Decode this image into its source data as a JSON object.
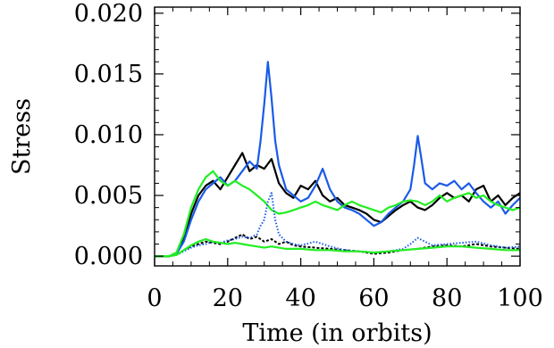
{
  "chart_data": {
    "type": "line",
    "title": "",
    "xlabel": "Time (in orbits)",
    "ylabel": "Stress",
    "xlim": [
      0,
      100
    ],
    "ylim": [
      -0.0008,
      0.0205
    ],
    "x_ticks": [
      0,
      20,
      40,
      60,
      80,
      100
    ],
    "x_tick_labels": [
      "0",
      "20",
      "40",
      "60",
      "80",
      "100"
    ],
    "y_ticks": [
      0.0,
      0.005,
      0.01,
      0.015,
      0.02
    ],
    "y_tick_labels": [
      "0.000",
      "0.005",
      "0.010",
      "0.015",
      "0.020"
    ],
    "grid": false,
    "legend": "none",
    "series": [
      {
        "color": "#000000",
        "style": "solid",
        "x": [
          0,
          4,
          6,
          8,
          10,
          12,
          14,
          16,
          18,
          20,
          22,
          24,
          26,
          28,
          30,
          32,
          34,
          36,
          38,
          40,
          42,
          44,
          46,
          48,
          50,
          52,
          54,
          56,
          58,
          60,
          62,
          64,
          66,
          68,
          70,
          72,
          74,
          76,
          78,
          80,
          82,
          84,
          86,
          88,
          90,
          92,
          94,
          96,
          98,
          100
        ],
        "y": [
          0.0,
          0.0,
          0.0002,
          0.0015,
          0.0035,
          0.005,
          0.0058,
          0.0062,
          0.0055,
          0.0065,
          0.0075,
          0.0085,
          0.007,
          0.0075,
          0.0072,
          0.008,
          0.006,
          0.0052,
          0.0048,
          0.0058,
          0.0055,
          0.0062,
          0.005,
          0.0045,
          0.0048,
          0.0042,
          0.004,
          0.0038,
          0.0035,
          0.003,
          0.0028,
          0.0033,
          0.0038,
          0.0042,
          0.0045,
          0.004,
          0.0038,
          0.0042,
          0.0048,
          0.0052,
          0.0048,
          0.005,
          0.0045,
          0.0055,
          0.0058,
          0.0045,
          0.005,
          0.0042,
          0.0048,
          0.0052
        ]
      },
      {
        "color": "#1a5be8",
        "style": "solid",
        "x": [
          0,
          4,
          6,
          8,
          10,
          12,
          14,
          16,
          18,
          20,
          22,
          24,
          26,
          28,
          29,
          30,
          31,
          32,
          33,
          34,
          36,
          38,
          40,
          42,
          44,
          46,
          48,
          50,
          52,
          54,
          56,
          58,
          60,
          62,
          64,
          66,
          68,
          70,
          71,
          72,
          73,
          74,
          76,
          78,
          80,
          82,
          84,
          86,
          88,
          90,
          92,
          94,
          96,
          98,
          100
        ],
        "y": [
          0.0,
          0.0,
          0.0002,
          0.0012,
          0.003,
          0.0045,
          0.0055,
          0.006,
          0.0065,
          0.0058,
          0.0062,
          0.007,
          0.0078,
          0.0072,
          0.0095,
          0.0125,
          0.016,
          0.013,
          0.0095,
          0.0075,
          0.0055,
          0.005,
          0.0045,
          0.0048,
          0.0058,
          0.0072,
          0.0055,
          0.0045,
          0.004,
          0.0038,
          0.0035,
          0.003,
          0.0025,
          0.0028,
          0.0035,
          0.004,
          0.0045,
          0.0055,
          0.0075,
          0.0099,
          0.008,
          0.006,
          0.0055,
          0.006,
          0.0058,
          0.0062,
          0.0055,
          0.006,
          0.0052,
          0.0045,
          0.004,
          0.0045,
          0.0035,
          0.0042,
          0.0048
        ]
      },
      {
        "color": "#22ee22",
        "style": "solid",
        "x": [
          0,
          4,
          6,
          8,
          10,
          12,
          14,
          16,
          18,
          20,
          22,
          24,
          26,
          28,
          30,
          32,
          34,
          36,
          38,
          40,
          42,
          44,
          46,
          48,
          50,
          52,
          54,
          56,
          58,
          60,
          62,
          64,
          66,
          68,
          70,
          72,
          74,
          76,
          78,
          80,
          82,
          84,
          86,
          88,
          90,
          92,
          94,
          96,
          98,
          100
        ],
        "y": [
          0.0,
          0.0,
          0.0003,
          0.0018,
          0.004,
          0.0055,
          0.0065,
          0.007,
          0.0062,
          0.0058,
          0.0062,
          0.0058,
          0.0055,
          0.005,
          0.0045,
          0.0038,
          0.0035,
          0.0036,
          0.0038,
          0.004,
          0.0042,
          0.0045,
          0.0042,
          0.004,
          0.0038,
          0.0042,
          0.0045,
          0.0042,
          0.004,
          0.0038,
          0.0036,
          0.004,
          0.0042,
          0.0045,
          0.0046,
          0.0045,
          0.0042,
          0.0045,
          0.005,
          0.0045,
          0.0048,
          0.005,
          0.0052,
          0.0048,
          0.005,
          0.0045,
          0.0042,
          0.004,
          0.0038,
          0.004
        ]
      },
      {
        "color": "#000000",
        "style": "dashed",
        "x": [
          0,
          4,
          6,
          8,
          10,
          12,
          14,
          16,
          18,
          20,
          22,
          24,
          26,
          28,
          30,
          32,
          34,
          36,
          38,
          40,
          44,
          48,
          52,
          56,
          60,
          64,
          68,
          72,
          76,
          80,
          84,
          88,
          92,
          96,
          100
        ],
        "y": [
          0.0,
          0.0,
          0.0001,
          0.0005,
          0.0008,
          0.001,
          0.0012,
          0.0011,
          0.001,
          0.0012,
          0.0015,
          0.0018,
          0.0014,
          0.0016,
          0.0012,
          0.0014,
          0.001,
          0.0012,
          0.0009,
          0.0008,
          0.0007,
          0.0006,
          0.0005,
          0.0004,
          0.0002,
          0.0003,
          0.0005,
          0.0006,
          0.0008,
          0.0009,
          0.0008,
          0.001,
          0.0008,
          0.0007,
          0.0006
        ]
      },
      {
        "color": "#1a5be8",
        "style": "dotted",
        "x": [
          0,
          4,
          6,
          8,
          10,
          12,
          14,
          16,
          18,
          20,
          22,
          24,
          26,
          28,
          29,
          30,
          31,
          32,
          33,
          34,
          36,
          38,
          40,
          44,
          48,
          52,
          56,
          60,
          64,
          68,
          70,
          72,
          74,
          76,
          80,
          84,
          88,
          92,
          96,
          100
        ],
        "y": [
          0.0,
          0.0,
          0.0001,
          0.0004,
          0.0007,
          0.0009,
          0.001,
          0.0012,
          0.0011,
          0.0013,
          0.0014,
          0.0016,
          0.0015,
          0.0018,
          0.0025,
          0.003,
          0.0045,
          0.0052,
          0.003,
          0.0018,
          0.0012,
          0.001,
          0.0009,
          0.0012,
          0.0008,
          0.0005,
          0.0004,
          0.0003,
          0.0004,
          0.0006,
          0.001,
          0.0015,
          0.0012,
          0.0009,
          0.001,
          0.0011,
          0.0012,
          0.0009,
          0.0007,
          0.0008
        ]
      },
      {
        "color": "#22ee22",
        "style": "solid",
        "x": [
          0,
          4,
          6,
          8,
          10,
          12,
          14,
          16,
          18,
          20,
          22,
          24,
          26,
          28,
          30,
          32,
          34,
          36,
          40,
          44,
          48,
          52,
          56,
          60,
          64,
          68,
          72,
          76,
          80,
          84,
          88,
          92,
          96,
          100
        ],
        "y": [
          0.0,
          0.0,
          0.0001,
          0.0005,
          0.0009,
          0.0012,
          0.0014,
          0.0012,
          0.0011,
          0.001,
          0.0011,
          0.001,
          0.0009,
          0.0008,
          0.0007,
          0.0008,
          0.0007,
          0.0006,
          0.0006,
          0.0005,
          0.0005,
          0.0004,
          0.0004,
          0.0003,
          0.0004,
          0.0005,
          0.0006,
          0.0007,
          0.0008,
          0.0008,
          0.0007,
          0.0006,
          0.0005,
          0.0005
        ]
      }
    ]
  }
}
